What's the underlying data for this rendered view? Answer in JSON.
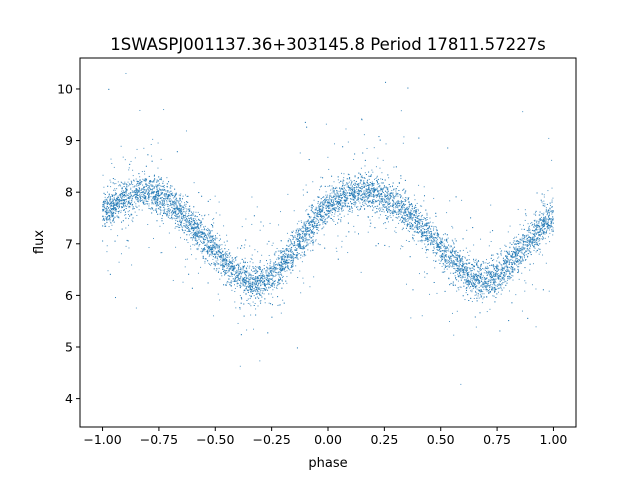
{
  "chart_data": {
    "type": "scatter",
    "title": "1SWASPJ001137.36+303145.8 Period 17811.57227s",
    "xlabel": "phase",
    "ylabel": "flux",
    "xlim": [
      -1.1,
      1.1
    ],
    "ylim": [
      3.45,
      10.6
    ],
    "x_ticks": [
      -1.0,
      -0.75,
      -0.5,
      -0.25,
      0.0,
      0.25,
      0.5,
      0.75,
      1.0
    ],
    "x_tick_labels": [
      "−1.00",
      "−0.75",
      "−0.50",
      "−0.25",
      "0.00",
      "0.25",
      "0.50",
      "0.75",
      "1.00"
    ],
    "y_ticks": [
      4,
      5,
      6,
      7,
      8,
      9,
      10
    ],
    "y_tick_labels": [
      "4",
      "5",
      "6",
      "7",
      "8",
      "9",
      "10"
    ],
    "grid": false,
    "legend": "none",
    "marker_color": "#1f77b4",
    "series": [
      {
        "x": [
          -1.0,
          -0.95,
          -0.9,
          -0.85,
          -0.8,
          -0.75,
          -0.7,
          -0.65,
          -0.6,
          -0.55,
          -0.5,
          -0.45,
          -0.4,
          -0.35,
          -0.3,
          -0.25,
          -0.2,
          -0.15,
          -0.1,
          -0.05,
          0.0,
          0.05,
          0.1,
          0.15,
          0.2,
          0.25,
          0.3,
          0.35,
          0.4,
          0.45,
          0.5,
          0.55,
          0.6,
          0.65,
          0.7,
          0.75,
          0.8,
          0.85,
          0.9,
          0.95,
          1.0
        ],
        "y": [
          7.6,
          7.75,
          7.9,
          7.98,
          8.0,
          7.95,
          7.8,
          7.6,
          7.35,
          7.1,
          6.85,
          6.6,
          6.4,
          6.28,
          6.25,
          6.35,
          6.6,
          6.9,
          7.2,
          7.5,
          7.7,
          7.85,
          7.95,
          8.0,
          7.98,
          7.92,
          7.8,
          7.6,
          7.4,
          7.15,
          6.9,
          6.65,
          6.45,
          6.3,
          6.25,
          6.35,
          6.6,
          6.85,
          7.1,
          7.35,
          7.55
        ]
      }
    ]
  }
}
